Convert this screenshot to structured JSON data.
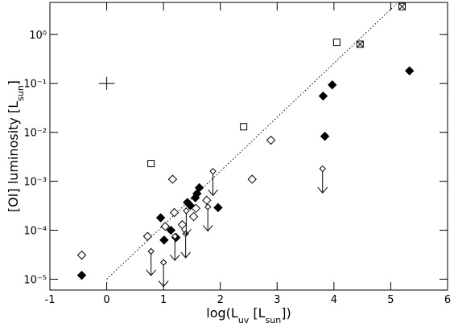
{
  "chart_data": {
    "type": "scatter",
    "xlabel": [
      "log(L",
      "uv",
      " [L",
      "sun",
      "])"
    ],
    "ylabel": [
      "[OI] luminosity [L",
      "sun",
      "]"
    ],
    "xlim": [
      -1,
      6
    ],
    "xticks": [
      -1,
      0,
      1,
      2,
      3,
      4,
      5,
      6
    ],
    "ylim": [
      6e-06,
      4.5
    ],
    "ylog": true,
    "yticks": [
      {
        "value": 1e-05,
        "label": "10⁻⁵"
      },
      {
        "value": 0.0001,
        "label": "10⁻⁴"
      },
      {
        "value": 0.001,
        "label": "10⁻³"
      },
      {
        "value": 0.01,
        "label": "10⁻²"
      },
      {
        "value": 0.1,
        "label": "10⁻¹"
      },
      {
        "value": 1,
        "label": "10⁰"
      }
    ],
    "series": [
      {
        "marker": "filled-diamond",
        "color": "#000000",
        "x": [
          -0.44,
          3.97,
          3.81,
          3.84,
          5.33,
          0.95,
          1.01,
          1.13,
          1.22,
          1.42,
          1.47,
          1.56,
          1.59,
          1.63,
          1.96
        ],
        "values": [
          1.2e-05,
          0.093,
          0.055,
          0.0083,
          0.18,
          0.00018,
          6.3e-05,
          0.0001,
          7.1e-05,
          0.00037,
          0.00032,
          0.00046,
          0.00056,
          0.00074,
          0.00029
        ]
      },
      {
        "marker": "open-diamond",
        "color": "#000000",
        "x": [
          -0.44,
          1.16,
          2.56,
          2.89,
          0.72,
          1.19,
          1.03,
          1.33,
          1.53,
          1.57,
          1.76
        ],
        "values": [
          3.1e-05,
          0.0011,
          0.0011,
          0.0069,
          7.5e-05,
          0.00023,
          0.00012,
          0.00013,
          0.00019,
          0.00028,
          0.00041
        ]
      },
      {
        "marker": "open-square",
        "color": "#000000",
        "x": [
          4.05,
          2.41,
          0.78
        ],
        "values": [
          0.69,
          0.013,
          0.0023
        ]
      },
      {
        "marker": "crossed-square",
        "color": "#000000",
        "x": [
          5.2,
          4.46
        ],
        "values": [
          3.7,
          0.63
        ]
      },
      {
        "marker": "upper-limit",
        "color": "#000000",
        "x": [
          0.78,
          1.0,
          1.2,
          1.39,
          1.4,
          1.78,
          1.87,
          3.8
        ],
        "values": [
          3.7e-05,
          2.2e-05,
          7.5e-05,
          8.5e-05,
          0.00025,
          0.0003,
          0.0016,
          0.0018
        ]
      }
    ],
    "error_example": {
      "x": 0,
      "y": 0.1,
      "xerr": 0.14,
      "yerr_dex": 0.13
    },
    "fit_line": {
      "x": [
        0,
        5.1
      ],
      "y": [
        1e-05,
        4.2
      ],
      "style": "dotted"
    }
  }
}
